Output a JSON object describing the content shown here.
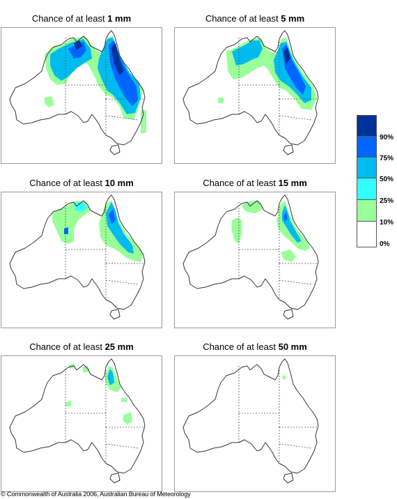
{
  "panels": [
    {
      "prefix": "Chance of at least ",
      "amount": "1 mm"
    },
    {
      "prefix": "Chance of at least ",
      "amount": "5 mm"
    },
    {
      "prefix": "Chance of at least ",
      "amount": "10 mm"
    },
    {
      "prefix": "Chance of at least ",
      "amount": "15 mm"
    },
    {
      "prefix": "Chance of at least ",
      "amount": "25 mm"
    },
    {
      "prefix": "Chance of at least ",
      "amount": "50 mm"
    }
  ],
  "legend": {
    "labels": [
      "90%",
      "75%",
      "50%",
      "25%",
      "10%",
      "0%"
    ],
    "colors": {
      "c90": "#003399",
      "c75": "#0066ff",
      "c50": "#00bbee",
      "c25": "#33ffff",
      "c10": "#99ff99",
      "c0": "#ffffff"
    }
  },
  "footer": "© Commonwealth of Australia 2006, Australian Bureau of Meteorology"
}
